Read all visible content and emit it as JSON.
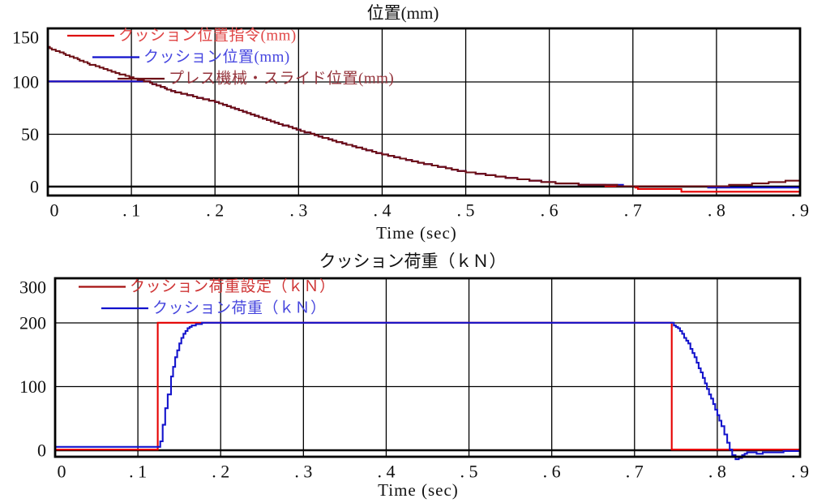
{
  "page": {
    "background": "#ffffff",
    "grid_color": "#000000"
  },
  "chart_data": [
    {
      "id": "position-chart",
      "type": "line",
      "title": "位置(mm)",
      "xlabel": "Time (sec)",
      "xlim": [
        0,
        0.9
      ],
      "ylim": [
        -8.5,
        151
      ],
      "grid": true,
      "x_ticks": {
        "values": [
          0,
          0.1,
          0.2,
          0.3,
          0.4,
          0.5,
          0.6,
          0.7,
          0.8,
          0.9
        ],
        "labels": [
          "0",
          ". 1",
          ". 2",
          ". 3",
          ". 4",
          ". 5",
          ". 6",
          ". 7",
          ". 8",
          ". 9"
        ]
      },
      "y_ticks": {
        "values": [
          0,
          50,
          100,
          150
        ],
        "labels": [
          "0",
          "50",
          "100",
          "150"
        ]
      },
      "legend": {
        "position": "top-left-inside",
        "entries": [
          {
            "label": "クッション位置指令(mm)",
            "line_color": "#dd1111",
            "text_color": "#e04545"
          },
          {
            "label": "クッション位置(mm)",
            "line_color": "#1111cc",
            "text_color": "#4646e0"
          },
          {
            "label": "プレス機械・スライド位置(mm)",
            "line_color": "#6d1016",
            "text_color": "#94333b"
          }
        ]
      },
      "series": [
        {
          "id": "cushion-position-command",
          "name": "クッション位置指令(mm)",
          "color": "#e60000",
          "points": [
            [
              0,
              100
            ],
            [
              0.12,
              100
            ],
            [
              0.15,
              91
            ],
            [
              0.2,
              81
            ],
            [
              0.25,
              67
            ],
            [
              0.3,
              54
            ],
            [
              0.35,
              42
            ],
            [
              0.4,
              31
            ],
            [
              0.45,
              22
            ],
            [
              0.5,
              14
            ],
            [
              0.55,
              8.5
            ],
            [
              0.6,
              4
            ],
            [
              0.63,
              2.5
            ],
            [
              0.66,
              1.2
            ],
            [
              0.7,
              0.3
            ],
            [
              0.706,
              -2.7
            ],
            [
              0.755,
              -2.7
            ],
            [
              0.758,
              -4.6
            ],
            [
              0.9,
              -4.6
            ]
          ]
        },
        {
          "id": "cushion-position",
          "name": "クッション位置(mm)",
          "color": "#1414cc",
          "points": [
            [
              0,
              100
            ],
            [
              0.12,
              100
            ],
            [
              0.15,
              91
            ],
            [
              0.2,
              81
            ],
            [
              0.25,
              67
            ],
            [
              0.3,
              54
            ],
            [
              0.35,
              42
            ],
            [
              0.4,
              31
            ],
            [
              0.45,
              22
            ],
            [
              0.5,
              14
            ],
            [
              0.55,
              8.5
            ],
            [
              0.6,
              4
            ],
            [
              0.63,
              2.5
            ],
            [
              0.66,
              1.5
            ],
            [
              0.7,
              0.8
            ],
            [
              0.73,
              0
            ],
            [
              0.78,
              0
            ],
            [
              0.8,
              -0.6
            ],
            [
              0.82,
              -1.3
            ],
            [
              0.9,
              -1.5
            ]
          ]
        },
        {
          "id": "slide-position",
          "name": "プレス機械・スライド位置(mm)",
          "color": "#6d1016",
          "points": [
            [
              0,
              133
            ],
            [
              0.05,
              117
            ],
            [
              0.1,
              104
            ],
            [
              0.12,
              100
            ],
            [
              0.15,
              91
            ],
            [
              0.2,
              81
            ],
            [
              0.25,
              67
            ],
            [
              0.3,
              54
            ],
            [
              0.35,
              42
            ],
            [
              0.4,
              31
            ],
            [
              0.45,
              22
            ],
            [
              0.5,
              14
            ],
            [
              0.55,
              8.5
            ],
            [
              0.6,
              4
            ],
            [
              0.63,
              2.5
            ],
            [
              0.66,
              1.5
            ],
            [
              0.7,
              0.6
            ],
            [
              0.72,
              0.2
            ],
            [
              0.76,
              0
            ],
            [
              0.8,
              0.6
            ],
            [
              0.82,
              1.2
            ],
            [
              0.84,
              2.2
            ],
            [
              0.86,
              3.6
            ],
            [
              0.88,
              5
            ],
            [
              0.9,
              6.5
            ]
          ]
        }
      ]
    },
    {
      "id": "load-chart",
      "type": "line",
      "title": "クッション荷重（ｋＮ）",
      "xlabel": "Time (sec)",
      "xlim": [
        0,
        0.9
      ],
      "ylim": [
        -10,
        270
      ],
      "grid": true,
      "x_ticks": {
        "values": [
          0,
          0.1,
          0.2,
          0.3,
          0.4,
          0.5,
          0.6,
          0.7,
          0.8,
          0.9
        ],
        "labels": [
          "0",
          ". 1",
          ". 2",
          ". 3",
          ". 4",
          ". 5",
          ". 6",
          ". 7",
          ". 8",
          ". 9"
        ]
      },
      "y_ticks": {
        "values": [
          0,
          100,
          200,
          300
        ],
        "labels": [
          "0",
          "100",
          "200",
          "300"
        ]
      },
      "legend": {
        "position": "top-left-inside",
        "entries": [
          {
            "label": "クッション荷重設定（ｋＮ）",
            "line_color": "#a51010",
            "text_color": "#cf3535"
          },
          {
            "label": "クッション荷重（ｋＮ）",
            "line_color": "#1111cc",
            "text_color": "#4646dd"
          }
        ]
      },
      "series": [
        {
          "id": "cushion-load-setting",
          "name": "クッション荷重設定（ｋＮ）",
          "color": "#e60000",
          "points": [
            [
              0,
              0
            ],
            [
              0.124,
              0
            ],
            [
              0.124,
              200
            ],
            [
              0.745,
              200
            ],
            [
              0.745,
              0
            ],
            [
              0.9,
              0
            ]
          ]
        },
        {
          "id": "cushion-load",
          "name": "クッション荷重（ｋＮ）",
          "color": "#1414cc",
          "points": [
            [
              0,
              6
            ],
            [
              0.124,
              6
            ],
            [
              0.127,
              15
            ],
            [
              0.13,
              40
            ],
            [
              0.133,
              65
            ],
            [
              0.136,
              88
            ],
            [
              0.14,
              115
            ],
            [
              0.145,
              147
            ],
            [
              0.15,
              168
            ],
            [
              0.155,
              183
            ],
            [
              0.16,
              192
            ],
            [
              0.165,
              196
            ],
            [
              0.17,
              198
            ],
            [
              0.18,
              200
            ],
            [
              0.745,
              200
            ],
            [
              0.755,
              188
            ],
            [
              0.765,
              167
            ],
            [
              0.775,
              138
            ],
            [
              0.785,
              105
            ],
            [
              0.795,
              72
            ],
            [
              0.805,
              38
            ],
            [
              0.812,
              12
            ],
            [
              0.818,
              -8
            ],
            [
              0.822,
              -14
            ],
            [
              0.826,
              -13
            ],
            [
              0.83,
              -8
            ],
            [
              0.836,
              -4
            ],
            [
              0.84,
              -3
            ],
            [
              0.85,
              -5
            ],
            [
              0.855,
              -4
            ],
            [
              0.86,
              -3
            ],
            [
              0.87,
              -3
            ],
            [
              0.88,
              -2
            ],
            [
              0.9,
              -2
            ]
          ]
        }
      ]
    }
  ]
}
